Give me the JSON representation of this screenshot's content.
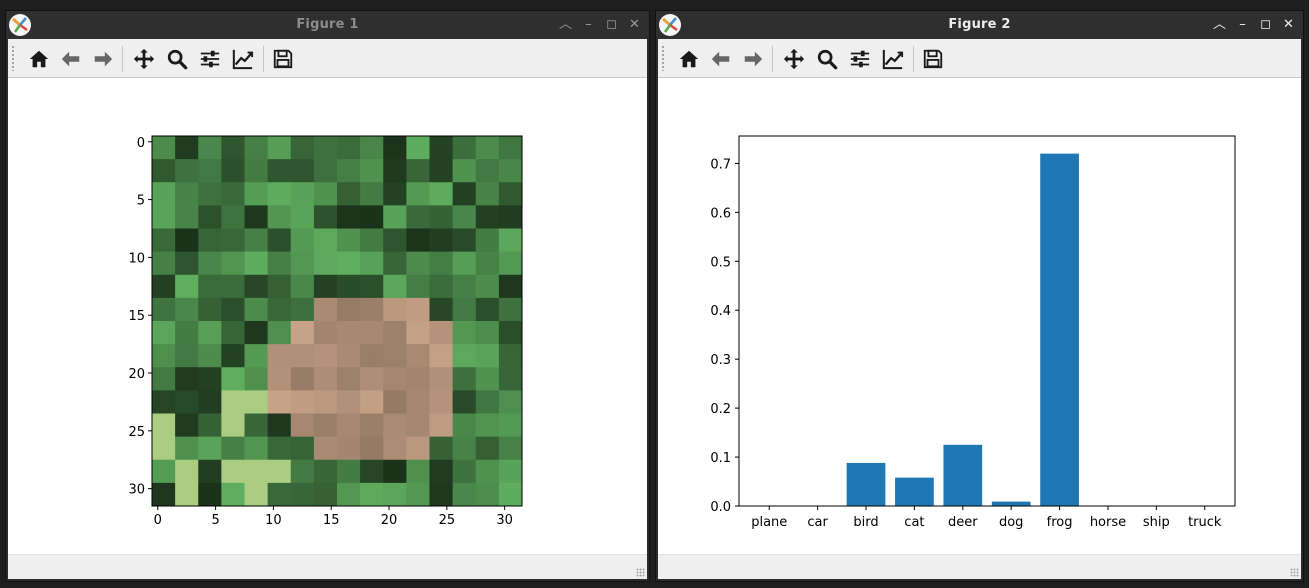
{
  "windows": [
    {
      "title": "Figure 1",
      "active": false,
      "toolbar_icons": [
        "home-icon",
        "back-arrow-icon",
        "forward-arrow-icon",
        "pan-icon",
        "zoom-icon",
        "configure-subplots-icon",
        "edit-axes-icon",
        "save-icon"
      ],
      "image_plot": {
        "type": "image",
        "description_classes": "frog",
        "xticks": [
          "0",
          "5",
          "10",
          "15",
          "20",
          "25",
          "30"
        ],
        "yticks": [
          "0",
          "5",
          "10",
          "15",
          "20",
          "25",
          "30"
        ],
        "xlim": [
          -0.5,
          31.5
        ],
        "ylim": [
          31.5,
          -0.5
        ]
      }
    },
    {
      "title": "Figure 2",
      "active": true,
      "toolbar_icons": [
        "home-icon",
        "back-arrow-icon",
        "forward-arrow-icon",
        "pan-icon",
        "zoom-icon",
        "configure-subplots-icon",
        "edit-axes-icon",
        "save-icon"
      ]
    }
  ],
  "chart_data": {
    "type": "bar",
    "categories": [
      "plane",
      "car",
      "bird",
      "cat",
      "deer",
      "dog",
      "frog",
      "horse",
      "ship",
      "truck"
    ],
    "values": [
      0.0,
      0.0,
      0.088,
      0.058,
      0.125,
      0.009,
      0.72,
      0.0,
      0.0,
      0.0
    ],
    "yticks": [
      "0.0",
      "0.1",
      "0.2",
      "0.3",
      "0.4",
      "0.5",
      "0.6",
      "0.7"
    ],
    "ylim": [
      0,
      0.756
    ],
    "color": "#1f77b4",
    "title": "",
    "xlabel": "",
    "ylabel": ""
  }
}
